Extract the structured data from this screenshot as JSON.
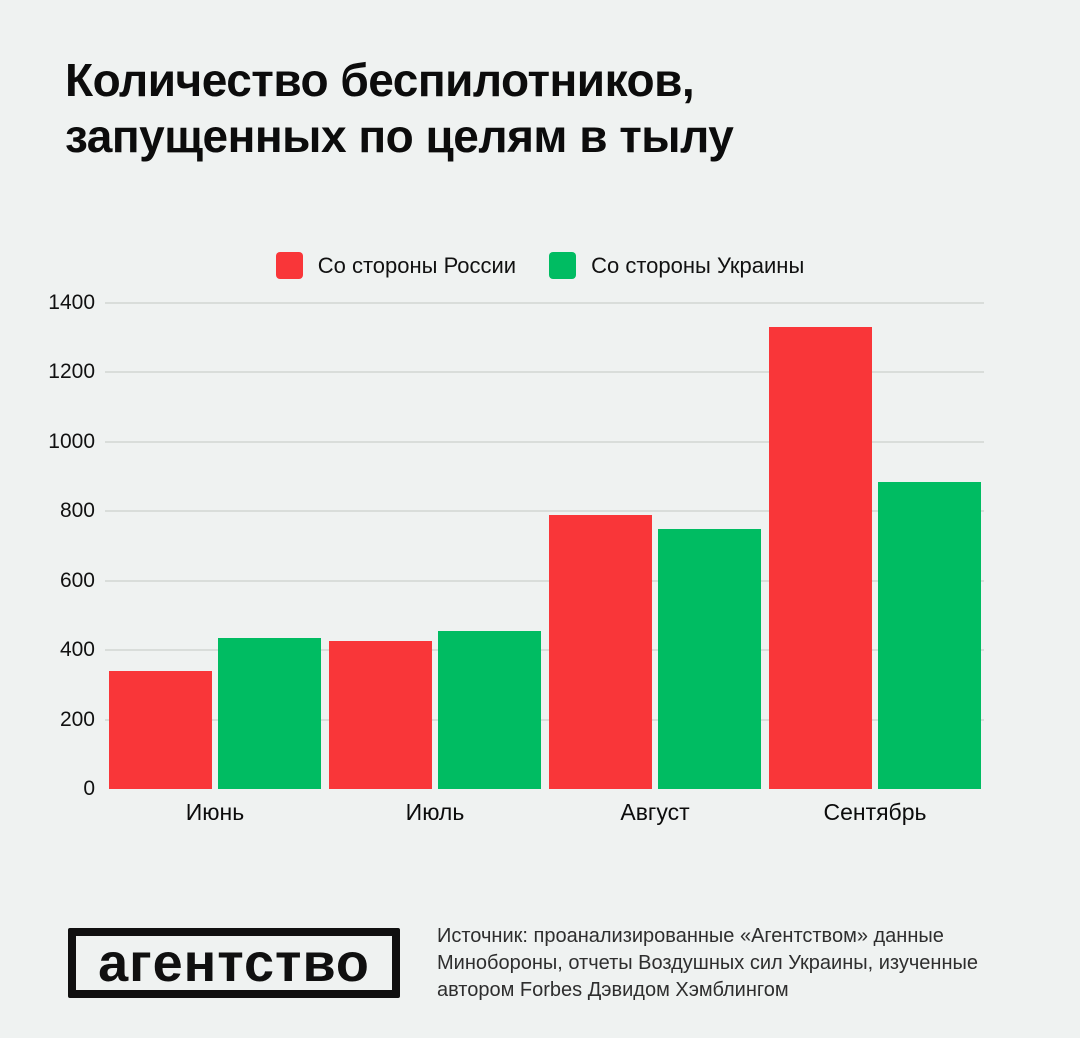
{
  "title": {
    "lines": [
      "Количество беспилотников,",
      "запущенных по целям в тылу"
    ]
  },
  "chart_data": {
    "type": "bar",
    "title": "Количество беспилотников, запущенных по целям в тылу",
    "categories": [
      "Июнь",
      "Июль",
      "Август",
      "Сентябрь"
    ],
    "series": [
      {
        "name": "Со стороны России",
        "color": "#f93639",
        "values": [
          340,
          425,
          790,
          1330
        ]
      },
      {
        "name": "Со стороны Украины",
        "color": "#00bc62",
        "values": [
          435,
          455,
          750,
          885
        ]
      }
    ],
    "xlabel": "",
    "ylabel": "",
    "ylim": [
      0,
      1400
    ],
    "yticks": [
      0,
      200,
      400,
      600,
      800,
      1000,
      1200,
      1400
    ],
    "grid": true,
    "legend_position": "top-center"
  },
  "footer": {
    "logo_text": "агентство",
    "source_lines": [
      "Источник: проанализированные «Агентством» данные",
      "Минобороны, отчеты Воздушных сил Украины, изученные",
      "автором Forbes Дэвидом Хэмблингом"
    ]
  },
  "colors": {
    "background": "#eff2f1",
    "grid": "#d9ddda",
    "russia_red": "#f93639",
    "ukraine_green": "#00bc62"
  }
}
